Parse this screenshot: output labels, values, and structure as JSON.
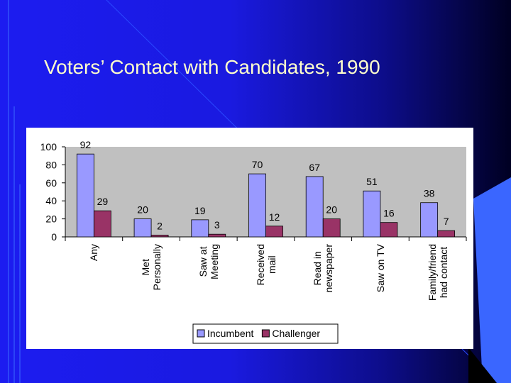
{
  "chart_data": {
    "type": "bar",
    "title": "Voters’ Contact with Candidates, 1990",
    "categories": [
      "Any",
      "Met\nPersonally",
      "Saw at\nMeeting",
      "Received\nmail",
      "Read in\nnewspaper",
      "Saw on TV",
      "Family/friend\nhad contact"
    ],
    "series": [
      {
        "name": "Incumbent",
        "color": "#9999ff",
        "values": [
          92,
          20,
          19,
          70,
          67,
          51,
          38
        ]
      },
      {
        "name": "Challenger",
        "color": "#993366",
        "values": [
          29,
          2,
          3,
          12,
          20,
          16,
          7
        ]
      }
    ],
    "ylim": [
      0,
      100
    ],
    "yticks": [
      0,
      20,
      40,
      60,
      80,
      100
    ],
    "grid": false,
    "legend": "bottom"
  }
}
